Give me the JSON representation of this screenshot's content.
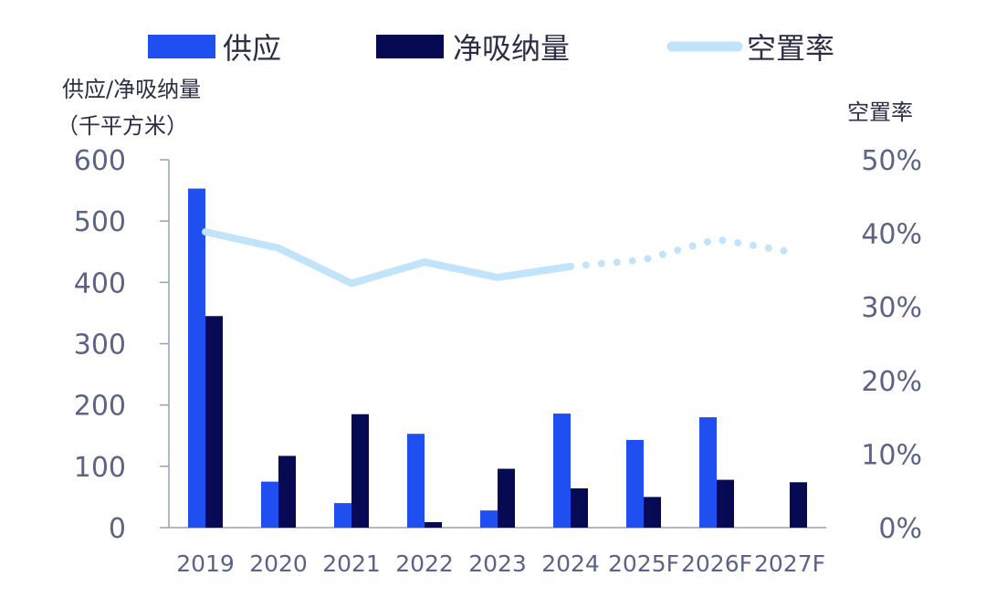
{
  "chart_data": {
    "type": "bar",
    "categories": [
      "2019",
      "2020",
      "2021",
      "2022",
      "2023",
      "2024",
      "2025F",
      "2026F",
      "2027F"
    ],
    "series": [
      {
        "name": "供应",
        "kind": "bar",
        "axis": "left",
        "color": "#1f4ff0",
        "values": [
          553,
          75,
          40,
          153,
          28,
          186,
          143,
          180,
          0
        ]
      },
      {
        "name": "净吸纳量",
        "kind": "bar",
        "axis": "left",
        "color": "#050a52",
        "values": [
          345,
          117,
          185,
          9,
          96,
          64,
          50,
          78,
          74
        ]
      },
      {
        "name": "空置率",
        "kind": "line",
        "axis": "right",
        "color": "#c2e4fa",
        "values": [
          40.2,
          38.0,
          33.2,
          36.1,
          34.0,
          35.5,
          36.4,
          39.2,
          37.5
        ],
        "forecast_from_index": 5
      }
    ],
    "y_left": {
      "title_line1": "供应/净吸纳量",
      "title_line2": "（千平方米）",
      "ticks": [
        "0",
        "100",
        "200",
        "300",
        "400",
        "500",
        "600"
      ],
      "range": [
        0,
        600
      ]
    },
    "y_right": {
      "title": "空置率",
      "ticks": [
        "0%",
        "10%",
        "20%",
        "30%",
        "40%",
        "50%"
      ],
      "range": [
        0,
        50
      ]
    },
    "legend": {
      "placement": "top",
      "items": [
        "供应",
        "净吸纳量",
        "空置率"
      ]
    },
    "grid": false
  }
}
